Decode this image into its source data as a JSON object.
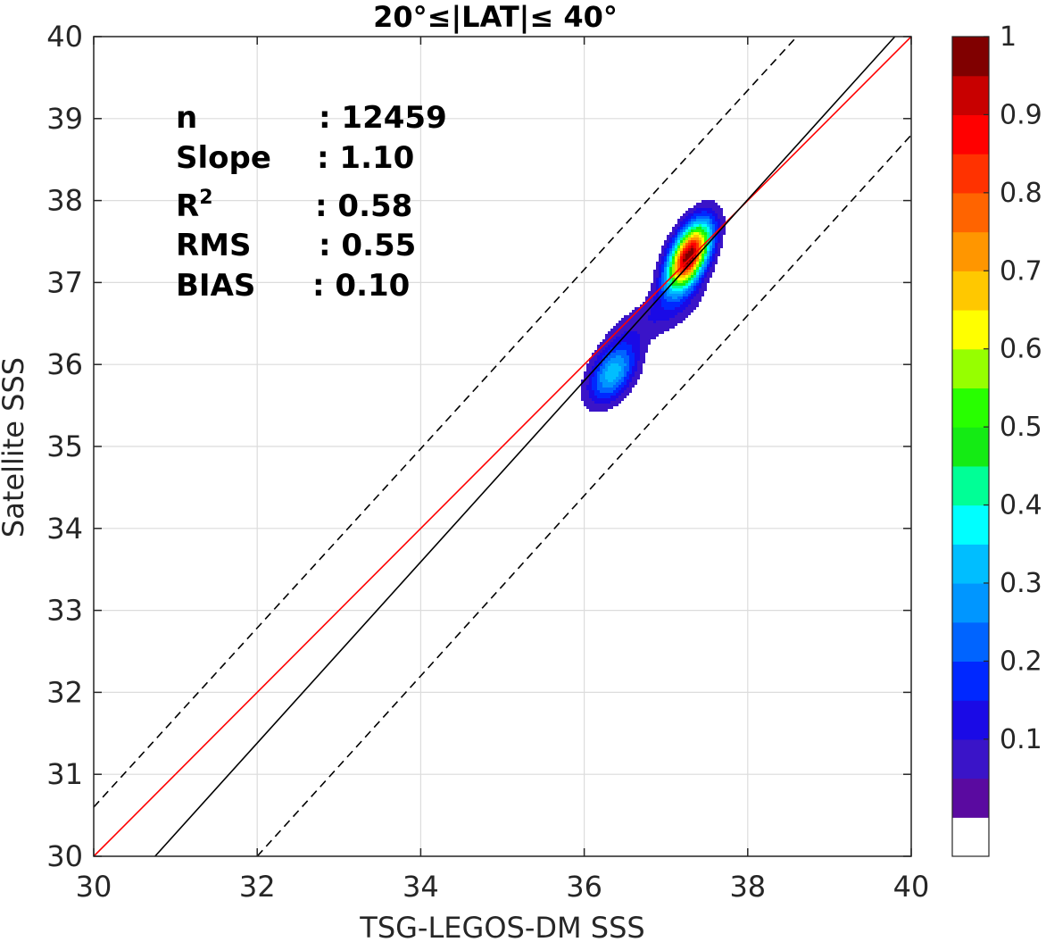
{
  "chart_data": {
    "type": "contour",
    "title": "20°≤|LAT|≤ 40°",
    "xlabel": "TSG-LEGOS-DM SSS",
    "ylabel": "Satellite SSS",
    "xlim": [
      30,
      40
    ],
    "ylim": [
      30,
      40
    ],
    "xticks": [
      "30",
      "32",
      "34",
      "36",
      "38",
      "40"
    ],
    "yticks": [
      "30",
      "31",
      "32",
      "33",
      "34",
      "35",
      "36",
      "37",
      "38",
      "39",
      "40"
    ],
    "grid": true,
    "stats": [
      {
        "key": "n",
        "value": ": 12459"
      },
      {
        "key": "Slope",
        "value": ": 1.10"
      },
      {
        "key": "R",
        "sup": "2",
        "value": ": 0.58"
      },
      {
        "key": "RMS",
        "value": ": 0.55"
      },
      {
        "key": "BIAS",
        "value": ": 0.10"
      }
    ],
    "lines": [
      {
        "name": "one-to-one",
        "color": "#ff0000",
        "style": "solid",
        "x": [
          30,
          40
        ],
        "y": [
          30,
          40
        ]
      },
      {
        "name": "regression",
        "color": "#000000",
        "style": "solid",
        "x": [
          30.75,
          39.8
        ],
        "y": [
          30,
          40
        ]
      },
      {
        "name": "upper-bound",
        "color": "#000000",
        "style": "dashed",
        "x": [
          30,
          38.6
        ],
        "y": [
          30.6,
          40
        ]
      },
      {
        "name": "lower-bound",
        "color": "#000000",
        "style": "dashed",
        "x": [
          32,
          40
        ],
        "y": [
          30,
          38.8
        ]
      }
    ],
    "density_peaks": [
      {
        "x": 37.28,
        "y": 37.32,
        "sx": 0.18,
        "sy": 0.28,
        "rho": 0.55,
        "amp": 1.0
      },
      {
        "x": 36.35,
        "y": 35.9,
        "sx": 0.2,
        "sy": 0.25,
        "rho": 0.45,
        "amp": 0.33
      },
      {
        "x": 36.9,
        "y": 36.6,
        "sx": 0.4,
        "sy": 0.25,
        "rho": 0.6,
        "amp": 0.09
      }
    ],
    "colorbar": {
      "levels": [
        0,
        0.05,
        0.1,
        0.15,
        0.2,
        0.25,
        0.3,
        0.35,
        0.4,
        0.45,
        0.5,
        0.55,
        0.6,
        0.65,
        0.7,
        0.75,
        0.8,
        0.85,
        0.9,
        0.95,
        1.0
      ],
      "colors": [
        "#ffffff",
        "#5a0aa0",
        "#3a14c8",
        "#1a0ae6",
        "#0028ff",
        "#0064ff",
        "#0096ff",
        "#00beff",
        "#00ffff",
        "#00ff96",
        "#14eb14",
        "#28ff00",
        "#96ff00",
        "#ffff00",
        "#ffc800",
        "#ff9600",
        "#ff6400",
        "#ff3200",
        "#ff0000",
        "#c80000",
        "#800000"
      ],
      "ticks": [
        "0.1",
        "0.2",
        "0.3",
        "0.4",
        "0.5",
        "0.6",
        "0.7",
        "0.8",
        "0.9",
        "1"
      ],
      "tick_values": [
        0.1,
        0.2,
        0.3,
        0.4,
        0.5,
        0.6,
        0.7,
        0.8,
        0.9,
        1.0
      ]
    }
  }
}
